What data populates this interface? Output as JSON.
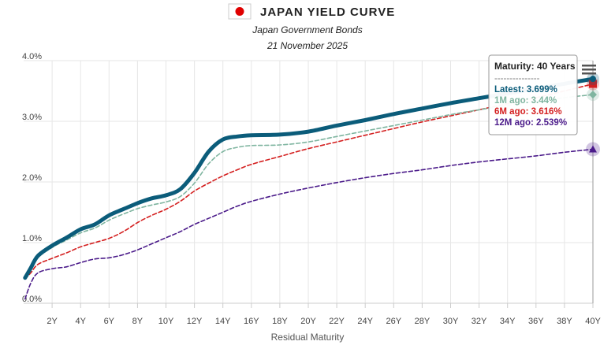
{
  "chart_data": {
    "type": "line",
    "title": "JAPAN YIELD CURVE",
    "subtitle_lines": [
      "Japan Government Bonds",
      "21 November 2025"
    ],
    "xlabel": "Residual Maturity",
    "ylabel": "",
    "xlim": [
      0,
      40
    ],
    "ylim": [
      0,
      4
    ],
    "x_ticks": [
      2,
      4,
      6,
      8,
      10,
      12,
      14,
      16,
      18,
      20,
      22,
      24,
      26,
      28,
      30,
      32,
      34,
      36,
      38,
      40
    ],
    "x_tick_labels": [
      "2Y",
      "4Y",
      "6Y",
      "8Y",
      "10Y",
      "12Y",
      "14Y",
      "16Y",
      "18Y",
      "20Y",
      "22Y",
      "24Y",
      "26Y",
      "28Y",
      "30Y",
      "32Y",
      "34Y",
      "36Y",
      "38Y",
      "40Y"
    ],
    "y_ticks": [
      0,
      1,
      2,
      3,
      4
    ],
    "y_tick_labels": [
      "0.0%",
      "1.0%",
      "2.0%",
      "3.0%",
      "4.0%"
    ],
    "grid": true,
    "series": [
      {
        "name": "Latest",
        "color": "#0b5c7a",
        "style": "solid",
        "x": [
          0.1,
          0.5,
          1,
          2,
          3,
          4,
          5,
          6,
          7,
          8,
          9,
          10,
          11,
          12,
          13,
          14,
          15,
          16,
          18,
          20,
          22,
          24,
          26,
          28,
          30,
          32,
          34,
          36,
          38,
          40
        ],
        "y": [
          0.42,
          0.58,
          0.78,
          0.95,
          1.08,
          1.22,
          1.3,
          1.45,
          1.55,
          1.65,
          1.73,
          1.78,
          1.88,
          2.15,
          2.5,
          2.7,
          2.75,
          2.77,
          2.78,
          2.83,
          2.93,
          3.02,
          3.12,
          3.21,
          3.3,
          3.38,
          3.46,
          3.54,
          3.62,
          3.699
        ]
      },
      {
        "name": "1M ago",
        "color": "#7fb5a0",
        "style": "dashed",
        "x": [
          0.1,
          0.5,
          1,
          2,
          3,
          4,
          5,
          6,
          7,
          8,
          9,
          10,
          11,
          12,
          13,
          14,
          15,
          16,
          18,
          20,
          22,
          24,
          26,
          28,
          30,
          32,
          34,
          36,
          38,
          40
        ],
        "y": [
          0.45,
          0.55,
          0.75,
          0.92,
          1.04,
          1.16,
          1.24,
          1.37,
          1.47,
          1.56,
          1.62,
          1.67,
          1.76,
          1.98,
          2.3,
          2.5,
          2.57,
          2.6,
          2.61,
          2.66,
          2.75,
          2.84,
          2.93,
          3.02,
          3.11,
          3.19,
          3.26,
          3.33,
          3.39,
          3.44
        ]
      },
      {
        "name": "6M ago",
        "color": "#d42020",
        "style": "dashed",
        "x": [
          0.1,
          0.5,
          1,
          2,
          3,
          4,
          5,
          6,
          7,
          8,
          9,
          10,
          11,
          12,
          13,
          14,
          15,
          16,
          18,
          20,
          22,
          24,
          26,
          28,
          30,
          32,
          34,
          36,
          38,
          40
        ],
        "y": [
          0.4,
          0.5,
          0.64,
          0.74,
          0.83,
          0.93,
          1.0,
          1.07,
          1.18,
          1.33,
          1.45,
          1.55,
          1.68,
          1.85,
          1.98,
          2.1,
          2.2,
          2.29,
          2.42,
          2.55,
          2.66,
          2.77,
          2.88,
          2.99,
          3.09,
          3.19,
          3.29,
          3.39,
          3.5,
          3.616
        ]
      },
      {
        "name": "12M ago",
        "color": "#4b1b8a",
        "style": "dashed",
        "x": [
          0.1,
          0.5,
          1,
          2,
          3,
          4,
          5,
          6,
          7,
          8,
          9,
          10,
          11,
          12,
          13,
          14,
          15,
          16,
          18,
          20,
          22,
          24,
          26,
          28,
          30,
          32,
          34,
          36,
          38,
          40
        ],
        "y": [
          0.07,
          0.33,
          0.5,
          0.57,
          0.6,
          0.67,
          0.73,
          0.75,
          0.8,
          0.88,
          0.98,
          1.08,
          1.18,
          1.3,
          1.4,
          1.5,
          1.6,
          1.68,
          1.8,
          1.9,
          1.99,
          2.07,
          2.14,
          2.2,
          2.27,
          2.33,
          2.38,
          2.43,
          2.49,
          2.539
        ]
      }
    ],
    "tooltip": {
      "title": "Maturity: 40 Years",
      "separator": "---------------",
      "lines": [
        {
          "text": "Latest: 3.699%",
          "color": "#0b5c7a"
        },
        {
          "text": "1M ago: 3.44%",
          "color": "#7fb5a0"
        },
        {
          "text": "6M ago: 3.616%",
          "color": "#d42020"
        },
        {
          "text": "12M ago: 2.539%",
          "color": "#4b1b8a"
        }
      ]
    },
    "markers_at_x": 40,
    "colors": {
      "grid": "#e6e6e6",
      "crosshair": "#999999",
      "flag_red": "#e00000"
    }
  }
}
